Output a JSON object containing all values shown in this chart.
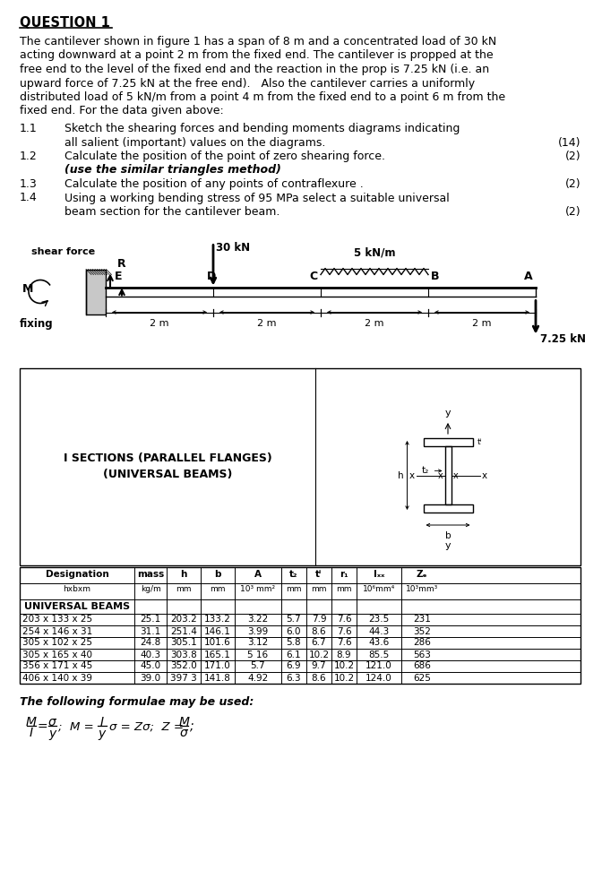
{
  "title": "QUESTION 1",
  "para_lines": [
    "The cantilever shown in figure 1 has a span of 8 m and a concentrated load of 30 kN",
    "acting downward at a point 2 m from the fixed end. The cantilever is propped at the",
    "free end to the level of the fixed end and the reaction in the prop is 7.25 kN (i.e. an",
    "upward force of 7.25 kN at the free end).   Also the cantilever carries a uniformly",
    "distributed load of 5 kN/m from a point 4 m from the fixed end to a point 6 m from the",
    "fixed end. For the data given above:"
  ],
  "items": [
    {
      "num": "1.1",
      "line1": "Sketch the shearing forces and bending moments diagrams indicating",
      "line2": "all salient (important) values on the diagrams.",
      "marks": "(14)",
      "italic2": false
    },
    {
      "num": "1.2",
      "line1": "Calculate the position of the point of zero shearing force.",
      "line2": "(use the similar triangles method)",
      "marks": "(2)",
      "italic2": true
    },
    {
      "num": "1.3",
      "line1": "Calculate the position of any points of contraflexure .",
      "line2": "",
      "marks": "(2)",
      "italic2": false
    },
    {
      "num": "1.4",
      "line1": "Using a working bending stress of 95 MPa select a suitable universal",
      "line2": "beam section for the cantilever beam.",
      "marks": "(2)",
      "italic2": false
    }
  ],
  "table_data": [
    [
      "203 x 133 x 25",
      "25.1",
      "203.2",
      "133.2",
      "3.22",
      "5.7",
      "7.9",
      "7.6",
      "23.5",
      "231"
    ],
    [
      "254 x 146 x 31",
      "31.1",
      "251.4",
      "146.1",
      "3.99",
      "6.0",
      "8.6",
      "7.6",
      "44.3",
      "352"
    ],
    [
      "305 x 102 x 25",
      "24.8",
      "305.1",
      "101.6",
      "3.12",
      "5.8",
      "6.7",
      "7.6",
      "43.6",
      "286"
    ],
    [
      "305 x 165 x 40",
      "40.3",
      "303.8",
      "165.1",
      "5 16",
      "6.1",
      "10.2",
      "8.9",
      "85.5",
      "563"
    ],
    [
      "356 x 171 x 45",
      "45.0",
      "352.0",
      "171.0",
      "5.7",
      "6.9",
      "9.7",
      "10.2",
      "121.0",
      "686"
    ],
    [
      "406 x 140 x 39",
      "39.0",
      "397 3",
      "141.8",
      "4.92",
      "6.3",
      "8.6",
      "10.2",
      "124.0",
      "625"
    ]
  ],
  "bg_color": "#ffffff"
}
